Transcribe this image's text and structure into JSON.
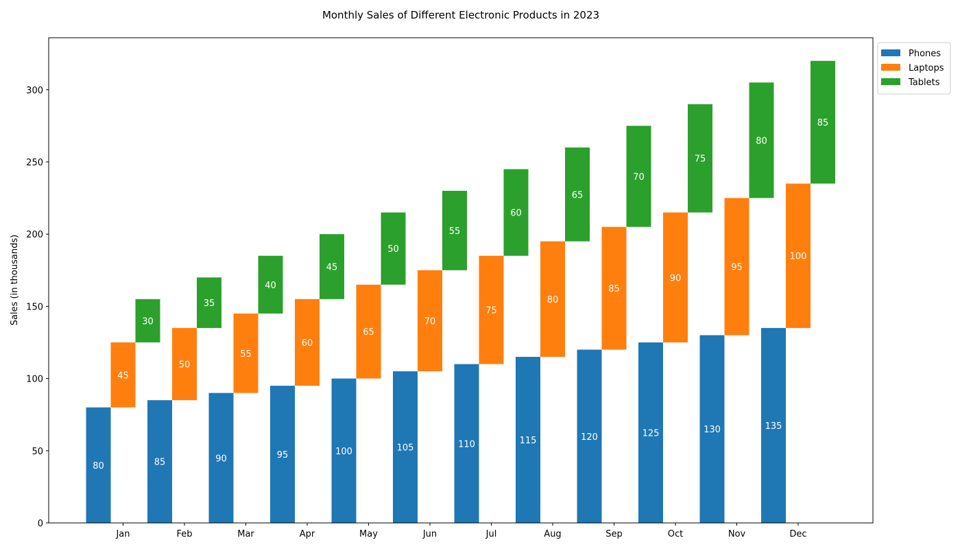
{
  "chart_data": {
    "type": "bar",
    "title": "Monthly Sales of Different Electronic Products in 2023",
    "xlabel": "",
    "ylabel": "Sales (in thousands)",
    "categories": [
      "Jan",
      "Feb",
      "Mar",
      "Apr",
      "May",
      "Jun",
      "Jul",
      "Aug",
      "Sep",
      "Oct",
      "Nov",
      "Dec"
    ],
    "series": [
      {
        "name": "Phones",
        "values": [
          80,
          85,
          90,
          95,
          100,
          105,
          110,
          115,
          120,
          125,
          130,
          135
        ],
        "color": "#1f77b4"
      },
      {
        "name": "Laptops",
        "values": [
          45,
          50,
          55,
          60,
          65,
          70,
          75,
          80,
          85,
          90,
          95,
          100
        ],
        "color": "#ff7f0e"
      },
      {
        "name": "Tablets",
        "values": [
          30,
          35,
          40,
          45,
          50,
          55,
          60,
          65,
          70,
          75,
          80,
          85
        ],
        "color": "#2ca02c"
      }
    ],
    "layout": "cumulative stacked offset bars",
    "ylim": [
      0,
      336
    ],
    "yticks": [
      0,
      50,
      100,
      150,
      200,
      250,
      300
    ],
    "grid": false,
    "legend_position": "upper-right-outside"
  }
}
